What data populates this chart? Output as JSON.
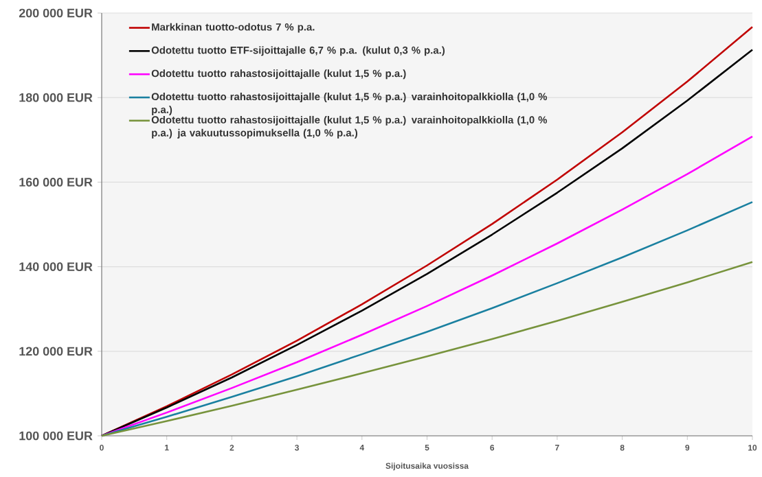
{
  "chart_data": {
    "type": "line",
    "xlabel": "Sijoitusaika vuosissa",
    "x": [
      0,
      1,
      2,
      3,
      4,
      5,
      6,
      7,
      8,
      9,
      10
    ],
    "xlim": [
      0,
      10
    ],
    "xticks": [
      0,
      1,
      2,
      3,
      4,
      5,
      6,
      7,
      8,
      9,
      10
    ],
    "ylim": [
      100000,
      200000
    ],
    "yticks": [
      {
        "value": 100000,
        "label": "100 000 EUR"
      },
      {
        "value": 120000,
        "label": "120 000 EUR"
      },
      {
        "value": 140000,
        "label": "140 000 EUR"
      },
      {
        "value": 160000,
        "label": "160 000 EUR"
      },
      {
        "value": 180000,
        "label": "180 000 EUR"
      },
      {
        "value": 200000,
        "label": "200 000 EUR"
      }
    ],
    "grid": "y",
    "legend": "top left",
    "series": [
      {
        "name": "Markkinan tuotto-odotus 7 % p.a.",
        "color": "#c00000",
        "values": [
          100000,
          107000,
          114500,
          122500,
          131100,
          140300,
          150100,
          160600,
          171800,
          183800,
          196700
        ]
      },
      {
        "name": "Odotettu tuotto ETF-sijoittajalle 6,7 % p.a. (kulut 0,3 % p.a.)",
        "color": "#000000",
        "values": [
          100000,
          106700,
          113800,
          121500,
          129600,
          138300,
          147600,
          157500,
          168000,
          179300,
          191300
        ]
      },
      {
        "name": "Odotettu tuotto rahastosijoittajalle (kulut 1,5 % p.a.)",
        "color": "#ff00ff",
        "values": [
          100000,
          105500,
          111300,
          117400,
          123900,
          130700,
          137900,
          145500,
          153500,
          161900,
          170800
        ]
      },
      {
        "name": "Odotettu tuotto rahastosijoittajalle (kulut 1,5 % p.a.) varainhoitopalkkiolla (1,0 % p.a.)",
        "color": "#1a80a0",
        "values": [
          100000,
          104500,
          109200,
          114100,
          119300,
          124600,
          130200,
          136100,
          142200,
          148600,
          155300
        ]
      },
      {
        "name": "Odotettu tuotto rahastosijoittajalle (kulut 1,5 % p.a.) varainhoitopalkkiolla (1,0 % p.a.) ja vakuutussopimuksella (1,0 % p.a.)",
        "color": "#77933c",
        "values": [
          100000,
          103500,
          107100,
          110900,
          114800,
          118800,
          122900,
          127200,
          131700,
          136300,
          141100
        ]
      }
    ]
  }
}
